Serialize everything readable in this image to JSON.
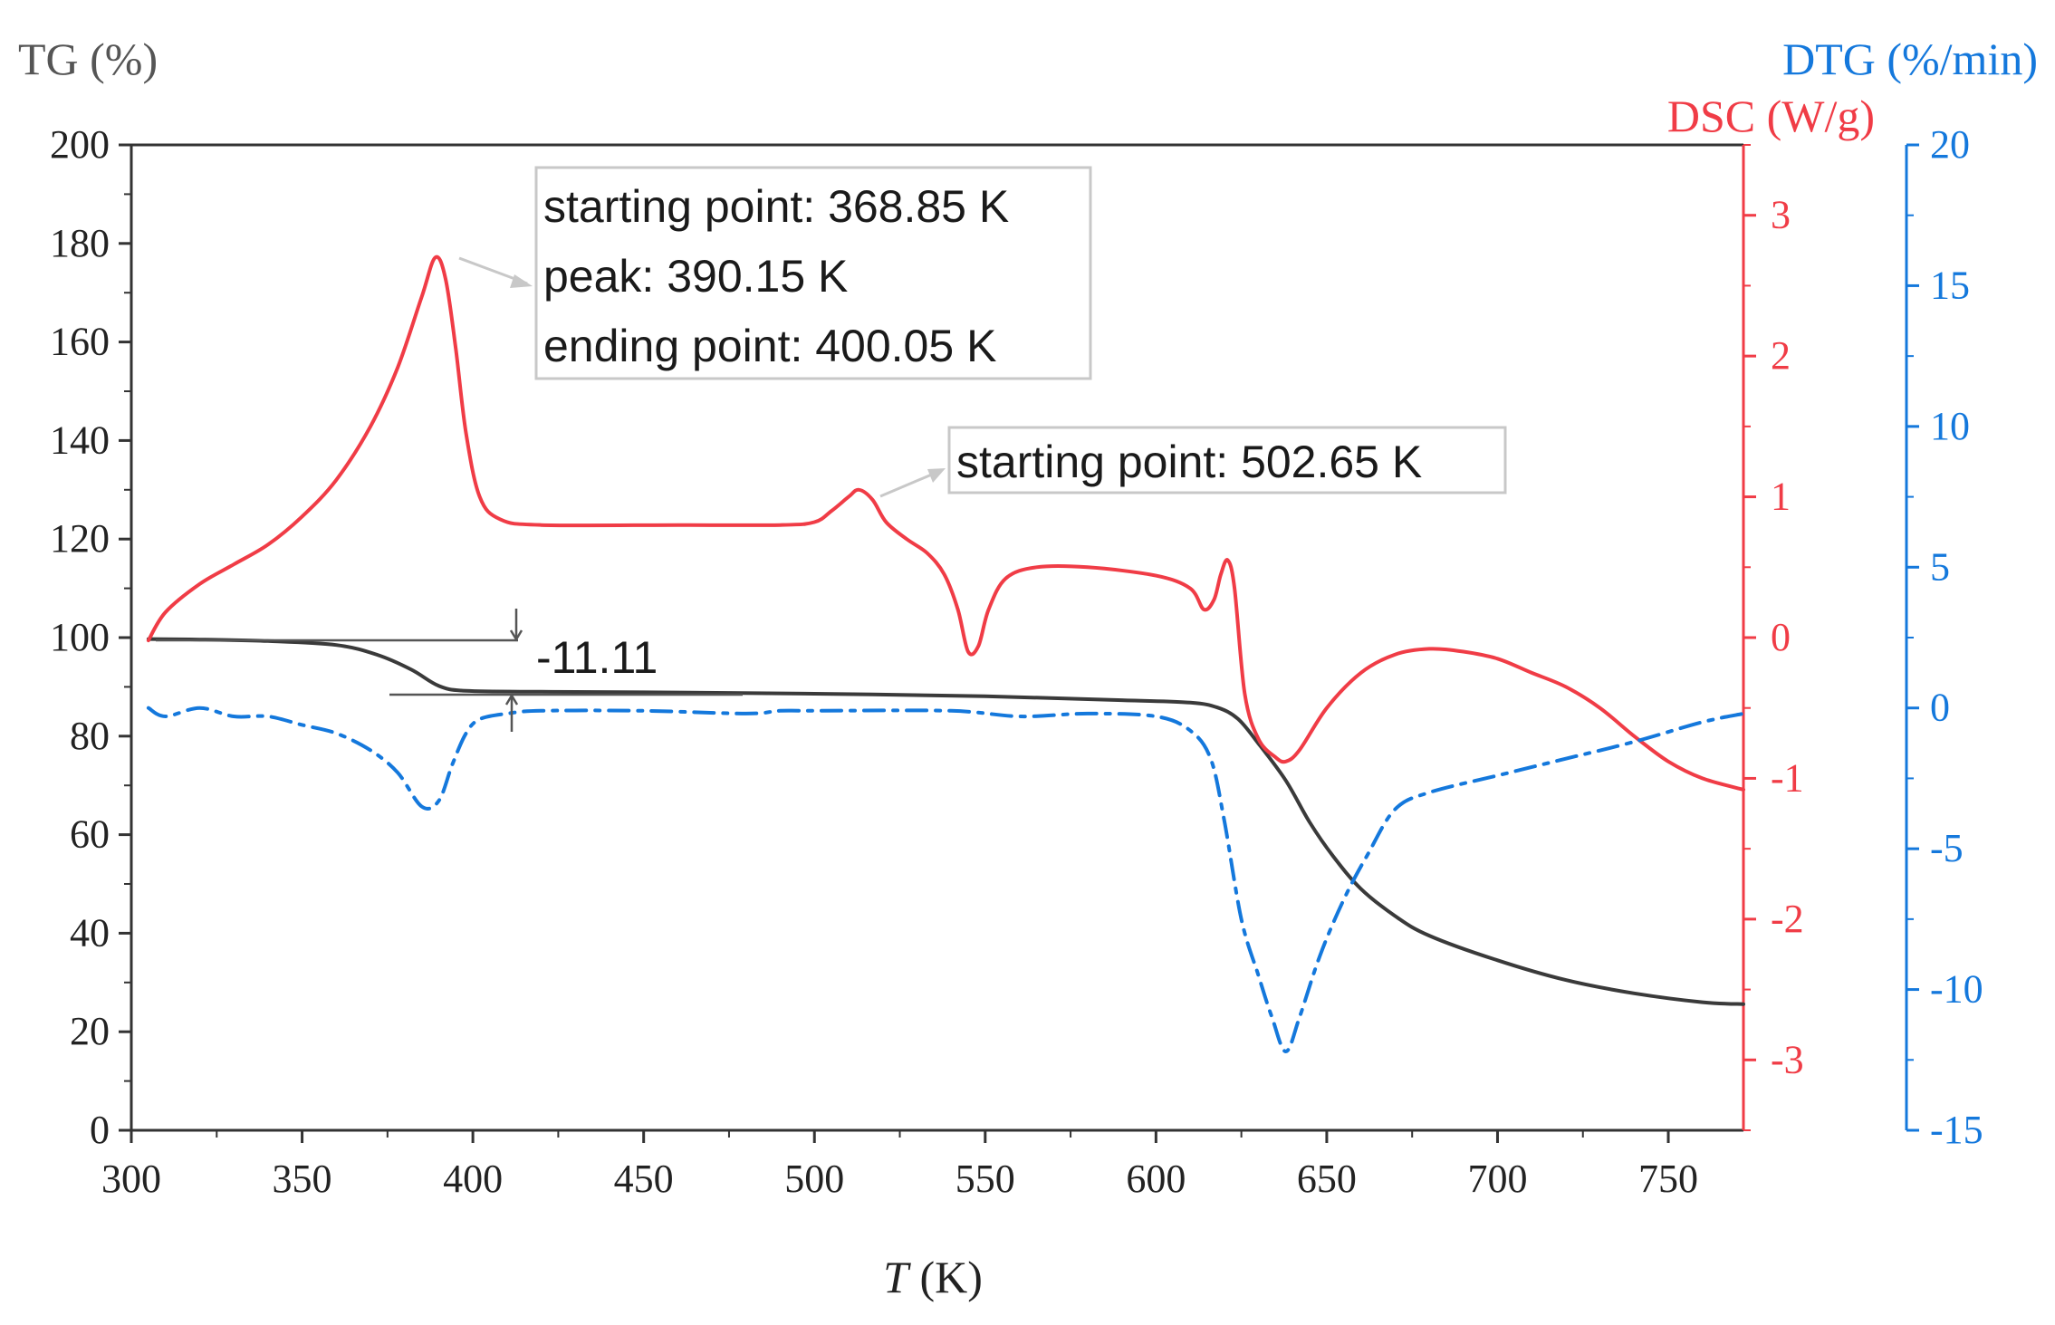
{
  "chart_data": {
    "type": "line",
    "xlabel_italic": "T",
    "xlabel_unit": " (K)",
    "x_axis": {
      "range": [
        300,
        772
      ],
      "ticks": [
        300,
        350,
        400,
        450,
        500,
        550,
        600,
        650,
        700,
        750
      ]
    },
    "y_left": {
      "label": "TG (%)",
      "range": [
        0,
        200
      ],
      "ticks": [
        0,
        20,
        40,
        60,
        80,
        100,
        120,
        140,
        160,
        180,
        200
      ],
      "color": "#222222"
    },
    "y_right1": {
      "label": "DSC (W/g)",
      "range": [
        -3.5,
        3.5
      ],
      "ticks": [
        -3,
        -2,
        -1,
        0,
        1,
        2,
        3
      ],
      "color": "#f03c46"
    },
    "y_right2": {
      "label": "DTG (%/min)",
      "range": [
        -15,
        20
      ],
      "ticks": [
        -15,
        -10,
        -5,
        0,
        5,
        10,
        15,
        20
      ],
      "color": "#1478dc"
    },
    "series": [
      {
        "name": "TG",
        "axis": "left",
        "color": "#3a3a3a",
        "style": "solid",
        "points": [
          [
            305,
            99.7
          ],
          [
            320,
            99.6
          ],
          [
            340,
            99.3
          ],
          [
            360,
            98.5
          ],
          [
            372,
            96.5
          ],
          [
            382,
            93.5
          ],
          [
            390,
            90.2
          ],
          [
            398,
            89.2
          ],
          [
            420,
            89.0
          ],
          [
            450,
            88.9
          ],
          [
            500,
            88.6
          ],
          [
            550,
            88.1
          ],
          [
            590,
            87.3
          ],
          [
            610,
            86.8
          ],
          [
            618,
            85.8
          ],
          [
            624,
            83.5
          ],
          [
            630,
            78.5
          ],
          [
            638,
            71.0
          ],
          [
            645,
            62.5
          ],
          [
            652,
            55.5
          ],
          [
            660,
            49.0
          ],
          [
            670,
            43.5
          ],
          [
            680,
            39.5
          ],
          [
            700,
            34.5
          ],
          [
            720,
            30.5
          ],
          [
            740,
            27.8
          ],
          [
            760,
            26.0
          ],
          [
            772,
            25.6
          ]
        ]
      },
      {
        "name": "DSC",
        "axis": "right1",
        "color": "#f03c46",
        "style": "solid",
        "points": [
          [
            305,
            -0.02
          ],
          [
            310,
            0.18
          ],
          [
            320,
            0.38
          ],
          [
            330,
            0.52
          ],
          [
            340,
            0.66
          ],
          [
            350,
            0.86
          ],
          [
            360,
            1.12
          ],
          [
            370,
            1.5
          ],
          [
            378,
            1.92
          ],
          [
            385,
            2.42
          ],
          [
            389,
            2.7
          ],
          [
            392,
            2.55
          ],
          [
            395,
            2.05
          ],
          [
            398,
            1.45
          ],
          [
            402,
            1.0
          ],
          [
            408,
            0.84
          ],
          [
            420,
            0.8
          ],
          [
            460,
            0.8
          ],
          [
            490,
            0.8
          ],
          [
            500,
            0.82
          ],
          [
            505,
            0.9
          ],
          [
            510,
            1.0
          ],
          [
            513,
            1.05
          ],
          [
            517,
            0.98
          ],
          [
            521,
            0.82
          ],
          [
            527,
            0.7
          ],
          [
            533,
            0.6
          ],
          [
            538,
            0.45
          ],
          [
            542,
            0.2
          ],
          [
            545,
            -0.1
          ],
          [
            548,
            -0.06
          ],
          [
            551,
            0.2
          ],
          [
            556,
            0.42
          ],
          [
            565,
            0.5
          ],
          [
            580,
            0.5
          ],
          [
            600,
            0.44
          ],
          [
            610,
            0.35
          ],
          [
            614,
            0.2
          ],
          [
            617,
            0.27
          ],
          [
            619,
            0.45
          ],
          [
            621,
            0.55
          ],
          [
            623,
            0.35
          ],
          [
            626,
            -0.4
          ],
          [
            630,
            -0.72
          ],
          [
            635,
            -0.85
          ],
          [
            638,
            -0.88
          ],
          [
            642,
            -0.8
          ],
          [
            650,
            -0.5
          ],
          [
            660,
            -0.25
          ],
          [
            670,
            -0.12
          ],
          [
            680,
            -0.08
          ],
          [
            690,
            -0.1
          ],
          [
            700,
            -0.15
          ],
          [
            710,
            -0.25
          ],
          [
            720,
            -0.35
          ],
          [
            730,
            -0.5
          ],
          [
            740,
            -0.7
          ],
          [
            750,
            -0.88
          ],
          [
            760,
            -1.0
          ],
          [
            772,
            -1.08
          ]
        ]
      },
      {
        "name": "DTG",
        "axis": "right2",
        "color": "#1478dc",
        "style": "dashdot",
        "points": [
          [
            305,
            0.0
          ],
          [
            310,
            -0.3
          ],
          [
            320,
            0.0
          ],
          [
            330,
            -0.3
          ],
          [
            340,
            -0.3
          ],
          [
            350,
            -0.6
          ],
          [
            360,
            -0.9
          ],
          [
            370,
            -1.5
          ],
          [
            378,
            -2.3
          ],
          [
            385,
            -3.5
          ],
          [
            390,
            -3.3
          ],
          [
            394,
            -2.0
          ],
          [
            398,
            -0.9
          ],
          [
            402,
            -0.4
          ],
          [
            410,
            -0.2
          ],
          [
            420,
            -0.1
          ],
          [
            450,
            -0.1
          ],
          [
            480,
            -0.2
          ],
          [
            490,
            -0.1
          ],
          [
            500,
            -0.1
          ],
          [
            540,
            -0.1
          ],
          [
            560,
            -0.3
          ],
          [
            580,
            -0.2
          ],
          [
            600,
            -0.3
          ],
          [
            610,
            -0.8
          ],
          [
            616,
            -1.8
          ],
          [
            620,
            -4.0
          ],
          [
            625,
            -7.5
          ],
          [
            630,
            -9.5
          ],
          [
            634,
            -11.0
          ],
          [
            638,
            -12.2
          ],
          [
            642,
            -11.0
          ],
          [
            648,
            -8.8
          ],
          [
            655,
            -6.8
          ],
          [
            662,
            -5.2
          ],
          [
            670,
            -3.6
          ],
          [
            680,
            -3.0
          ],
          [
            700,
            -2.4
          ],
          [
            720,
            -1.8
          ],
          [
            740,
            -1.2
          ],
          [
            760,
            -0.5
          ],
          [
            772,
            -0.2
          ]
        ]
      }
    ],
    "annotations": {
      "peak_box": [
        "starting point: 368.85 K",
        "peak: 390.15 K",
        "ending point: 400.05 K"
      ],
      "second_box": [
        "starting point: 502.65 K"
      ],
      "mass_loss": "-11.11"
    }
  }
}
